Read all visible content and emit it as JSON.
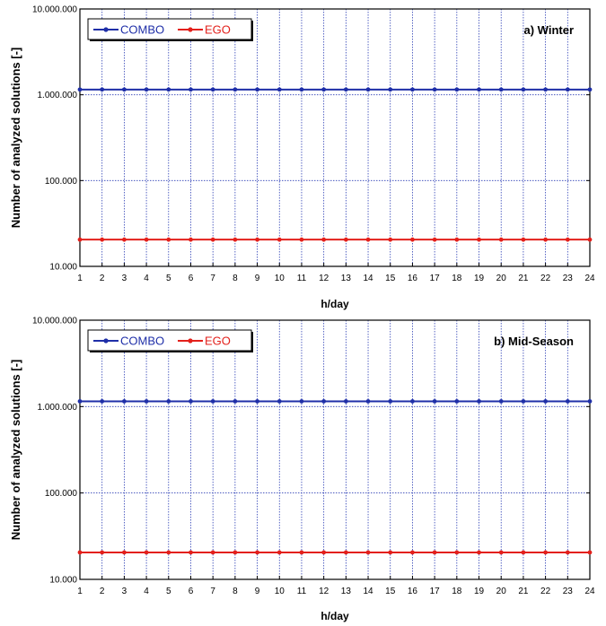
{
  "chart_data": [
    {
      "type": "line",
      "title": "a) Winter",
      "xlabel": "h/day",
      "ylabel": "Number of analyzed solutions [-]",
      "yscale": "log",
      "ylim": [
        10000,
        10000000
      ],
      "xlim": [
        1,
        24
      ],
      "ytick_labels": [
        "10.000",
        "100.000",
        "1.000.000",
        "10.000.000"
      ],
      "ytick_values": [
        10000,
        100000,
        1000000,
        10000000
      ],
      "x": [
        1,
        2,
        3,
        4,
        5,
        6,
        7,
        8,
        9,
        10,
        11,
        12,
        13,
        14,
        15,
        16,
        17,
        18,
        19,
        20,
        21,
        22,
        23,
        24
      ],
      "xtick_labels": [
        "1",
        "2",
        "3",
        "4",
        "5",
        "6",
        "7",
        "8",
        "9",
        "10",
        "11",
        "12",
        "13",
        "14",
        "15",
        "16",
        "17",
        "18",
        "19",
        "20",
        "21",
        "22",
        "23",
        "24"
      ],
      "grid": true,
      "legend_position": "top-left",
      "series": [
        {
          "name": "COMBO",
          "color": "#1f2fa8",
          "values": [
            1150000,
            1150000,
            1150000,
            1150000,
            1150000,
            1150000,
            1150000,
            1150000,
            1150000,
            1150000,
            1150000,
            1150000,
            1150000,
            1150000,
            1150000,
            1150000,
            1150000,
            1150000,
            1150000,
            1150000,
            1150000,
            1150000,
            1150000,
            1150000
          ]
        },
        {
          "name": "EGO",
          "color": "#e3201b",
          "values": [
            20500,
            20500,
            20500,
            20500,
            20500,
            20500,
            20500,
            20500,
            20500,
            20500,
            20500,
            20500,
            20500,
            20500,
            20500,
            20500,
            20500,
            20500,
            20500,
            20500,
            20500,
            20500,
            20500,
            20500
          ]
        }
      ]
    },
    {
      "type": "line",
      "title": "b) Mid-Season",
      "xlabel": "h/day",
      "ylabel": "Number of analyzed solutions [-]",
      "yscale": "log",
      "ylim": [
        10000,
        10000000
      ],
      "xlim": [
        1,
        24
      ],
      "ytick_labels": [
        "10.000",
        "100.000",
        "1.000.000",
        "10.000.000"
      ],
      "ytick_values": [
        10000,
        100000,
        1000000,
        10000000
      ],
      "x": [
        1,
        2,
        3,
        4,
        5,
        6,
        7,
        8,
        9,
        10,
        11,
        12,
        13,
        14,
        15,
        16,
        17,
        18,
        19,
        20,
        21,
        22,
        23,
        24
      ],
      "xtick_labels": [
        "1",
        "2",
        "3",
        "4",
        "5",
        "6",
        "7",
        "8",
        "9",
        "10",
        "11",
        "12",
        "13",
        "14",
        "15",
        "16",
        "17",
        "18",
        "19",
        "20",
        "21",
        "22",
        "23",
        "24"
      ],
      "grid": true,
      "legend_position": "top-left",
      "series": [
        {
          "name": "COMBO",
          "color": "#1f2fa8",
          "values": [
            1150000,
            1150000,
            1150000,
            1150000,
            1150000,
            1150000,
            1150000,
            1150000,
            1150000,
            1150000,
            1150000,
            1150000,
            1150000,
            1150000,
            1150000,
            1150000,
            1150000,
            1150000,
            1150000,
            1150000,
            1150000,
            1150000,
            1150000,
            1150000
          ]
        },
        {
          "name": "EGO",
          "color": "#e3201b",
          "values": [
            20500,
            20500,
            20500,
            20500,
            20500,
            20500,
            20500,
            20500,
            20500,
            20500,
            20500,
            20500,
            20500,
            20500,
            20500,
            20500,
            20500,
            20500,
            20500,
            20500,
            20500,
            20500,
            20500,
            20500
          ]
        }
      ]
    }
  ]
}
